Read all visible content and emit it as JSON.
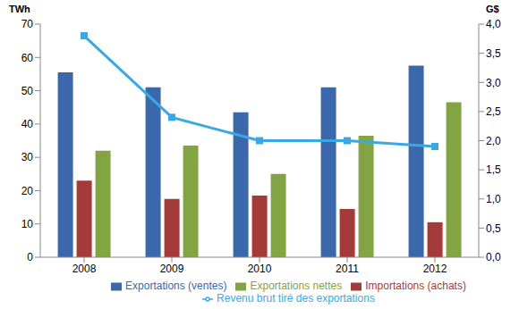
{
  "chart_data": {
    "type": "bar",
    "ylabel": "TWh",
    "y2label": "G$",
    "categories": [
      "2008",
      "2009",
      "2010",
      "2011",
      "2012"
    ],
    "series": [
      {
        "name": "Exportations (ventes)",
        "color": "#3b68aa",
        "values": [
          55.5,
          51,
          43.5,
          51,
          57.5
        ]
      },
      {
        "name": "Importations (achats)",
        "color": "#a33b3a",
        "values": [
          23,
          17.5,
          18.5,
          14.5,
          10.5
        ]
      },
      {
        "name": "Exportations nettes",
        "color": "#83a443",
        "values": [
          32,
          33.5,
          25,
          36.5,
          46.5
        ]
      },
      {
        "name": "Revenu brut tiré des exportations",
        "color": "#3aa8e4",
        "type": "line",
        "axis": "y2",
        "marker": "square",
        "values": [
          3.8,
          2.4,
          2.0,
          2.0,
          1.9
        ]
      }
    ],
    "ylim": [
      0,
      70
    ],
    "yticks": [
      0,
      10,
      20,
      30,
      40,
      50,
      60,
      70
    ],
    "y2lim": [
      0,
      4
    ],
    "y2ticks": [
      {
        "value": 0,
        "label": "0,0"
      },
      {
        "value": 0.5,
        "label": "0,5"
      },
      {
        "value": 1,
        "label": "1,0"
      },
      {
        "value": 1.5,
        "label": "1,5"
      },
      {
        "value": 2,
        "label": "2,0"
      },
      {
        "value": 2.5,
        "label": "2,5"
      },
      {
        "value": 3,
        "label": "3,0"
      },
      {
        "value": 3.5,
        "label": "3,5"
      },
      {
        "value": 4,
        "label": "4,0"
      }
    ],
    "grid": false,
    "legend": "bottom"
  }
}
